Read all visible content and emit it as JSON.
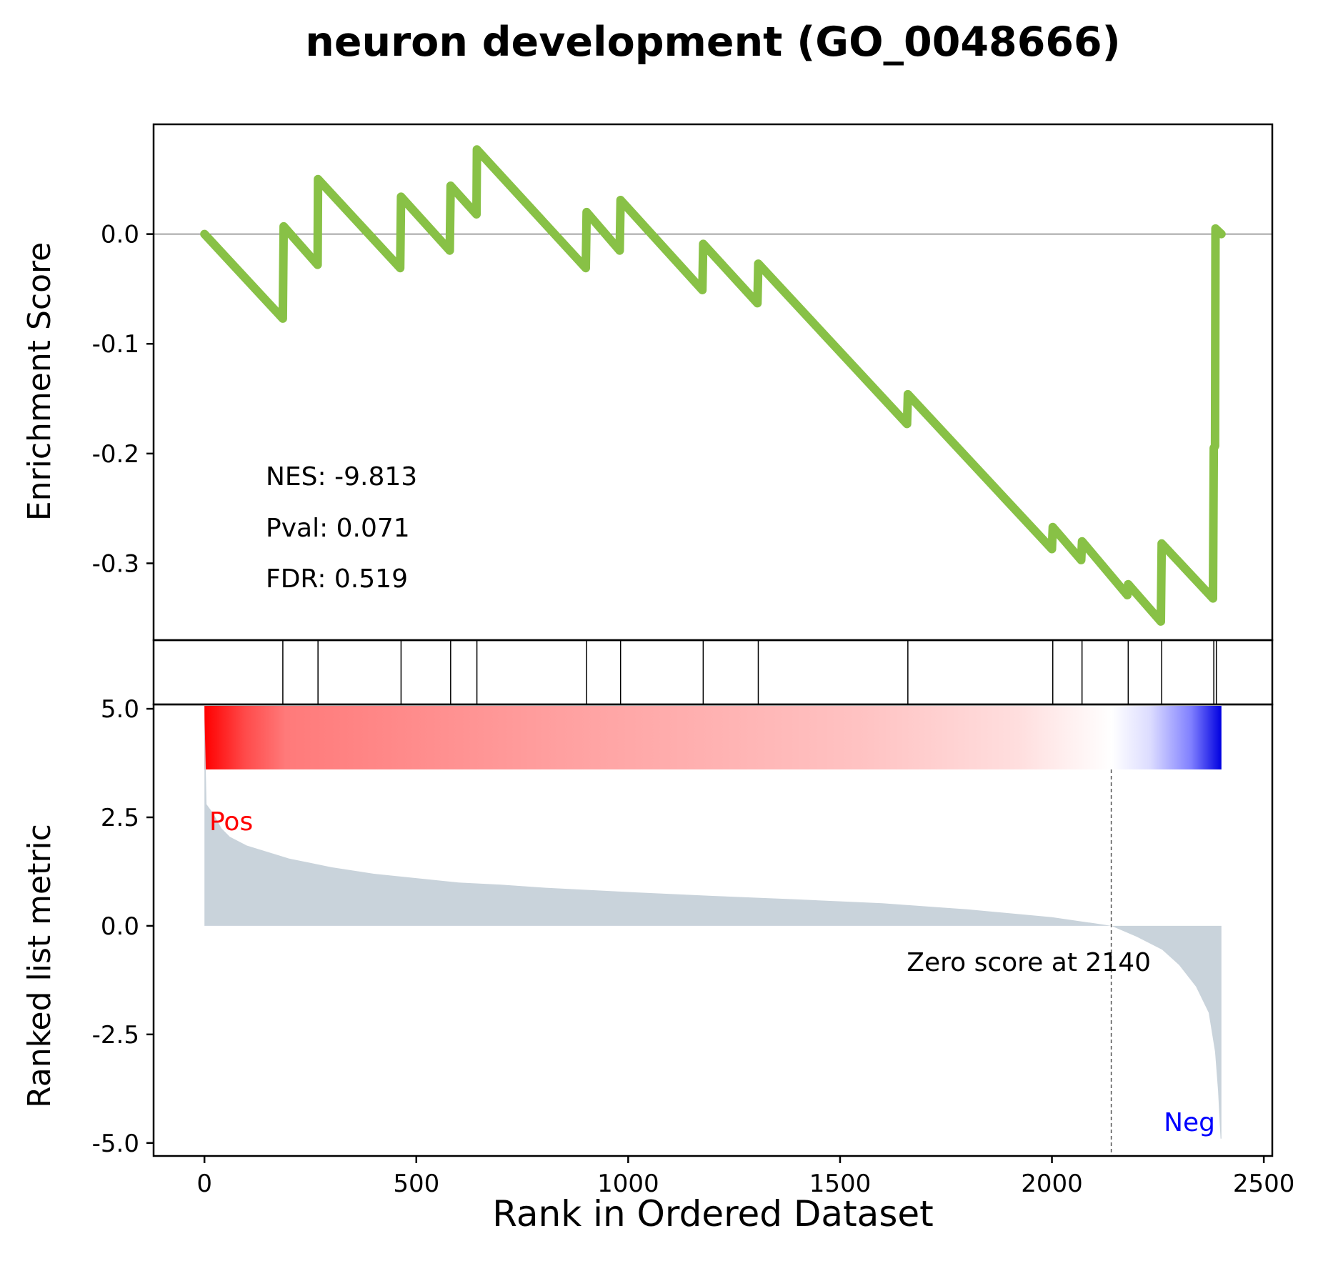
{
  "chart_data": {
    "type": "line",
    "title": "neuron development (GO_0048666)",
    "xlabel": "Rank in Ordered Dataset",
    "xlim": [
      -120,
      2520
    ],
    "xticks": [
      0,
      500,
      1000,
      1500,
      2000,
      2500
    ],
    "xtick_labels": [
      "0",
      "500",
      "1000",
      "1500",
      "2000",
      "2500"
    ],
    "es_panel": {
      "ylabel": "Enrichment Score",
      "ylim": [
        -0.37,
        0.1
      ],
      "yticks": [
        0.0,
        -0.1,
        -0.2,
        -0.3
      ],
      "ytick_labels": [
        "0.0",
        "-0.1",
        "-0.2",
        "-0.3"
      ],
      "line_color": "#88c146",
      "zero_line": true,
      "stats": [
        "NES: -9.813",
        "Pval: 0.071",
        "FDR: 0.519"
      ],
      "points": [
        [
          0,
          0.0
        ],
        [
          185,
          -0.077
        ],
        [
          187,
          0.007
        ],
        [
          267,
          -0.028
        ],
        [
          268,
          0.05
        ],
        [
          462,
          -0.031
        ],
        [
          464,
          0.034
        ],
        [
          579,
          -0.015
        ],
        [
          581,
          0.044
        ],
        [
          642,
          0.018
        ],
        [
          643,
          0.077
        ],
        [
          900,
          -0.031
        ],
        [
          902,
          0.02
        ],
        [
          980,
          -0.015
        ],
        [
          982,
          0.031
        ],
        [
          1175,
          -0.051
        ],
        [
          1177,
          -0.009
        ],
        [
          1305,
          -0.063
        ],
        [
          1307,
          -0.027
        ],
        [
          1658,
          -0.173
        ],
        [
          1660,
          -0.146
        ],
        [
          2000,
          -0.287
        ],
        [
          2002,
          -0.267
        ],
        [
          2069,
          -0.297
        ],
        [
          2071,
          -0.28
        ],
        [
          2178,
          -0.329
        ],
        [
          2180,
          -0.319
        ],
        [
          2257,
          -0.353
        ],
        [
          2259,
          -0.282
        ],
        [
          2380,
          -0.332
        ],
        [
          2382,
          -0.195
        ],
        [
          2385,
          -0.193
        ],
        [
          2386,
          0.005
        ],
        [
          2400,
          0.0
        ]
      ]
    },
    "hits_panel": {
      "hit_ranks": [
        185,
        268,
        464,
        581,
        643,
        902,
        982,
        1177,
        1307,
        1660,
        2002,
        2071,
        2180,
        2259,
        2382,
        2388
      ]
    },
    "colorbar": {
      "from_color": "#ff0000",
      "mid_color": "#ffffff",
      "to_color": "#0000ff",
      "zero_rank": 2140,
      "n_ranks": 2400
    },
    "rank_panel": {
      "ylabel": "Ranked list metric",
      "ylim": [
        -5.3,
        5.1
      ],
      "yticks": [
        5.0,
        2.5,
        0.0,
        -2.5,
        -5.0
      ],
      "ytick_labels": [
        "5.0",
        "2.5",
        "0.0",
        "-2.5",
        "-5.0"
      ],
      "fill_color": "#c9d3db",
      "pos_label": "Pos",
      "pos_color": "#ff0000",
      "neg_label": "Neg",
      "neg_color": "#0000ff",
      "zero_score_rank": 2140,
      "zero_score_text": "Zero score at 2140",
      "points": [
        [
          0,
          4.95
        ],
        [
          5,
          2.8
        ],
        [
          20,
          2.6
        ],
        [
          40,
          2.25
        ],
        [
          60,
          2.05
        ],
        [
          100,
          1.85
        ],
        [
          150,
          1.7
        ],
        [
          200,
          1.55
        ],
        [
          250,
          1.45
        ],
        [
          300,
          1.35
        ],
        [
          400,
          1.2
        ],
        [
          500,
          1.1
        ],
        [
          600,
          1.0
        ],
        [
          700,
          0.95
        ],
        [
          800,
          0.88
        ],
        [
          1000,
          0.78
        ],
        [
          1200,
          0.69
        ],
        [
          1400,
          0.61
        ],
        [
          1600,
          0.52
        ],
        [
          1800,
          0.38
        ],
        [
          2000,
          0.2
        ],
        [
          2100,
          0.06
        ],
        [
          2140,
          0.0
        ],
        [
          2200,
          -0.25
        ],
        [
          2260,
          -0.55
        ],
        [
          2300,
          -0.9
        ],
        [
          2340,
          -1.4
        ],
        [
          2370,
          -2.0
        ],
        [
          2385,
          -2.9
        ],
        [
          2392,
          -3.8
        ],
        [
          2398,
          -4.9
        ],
        [
          2400,
          -4.9
        ]
      ]
    }
  }
}
